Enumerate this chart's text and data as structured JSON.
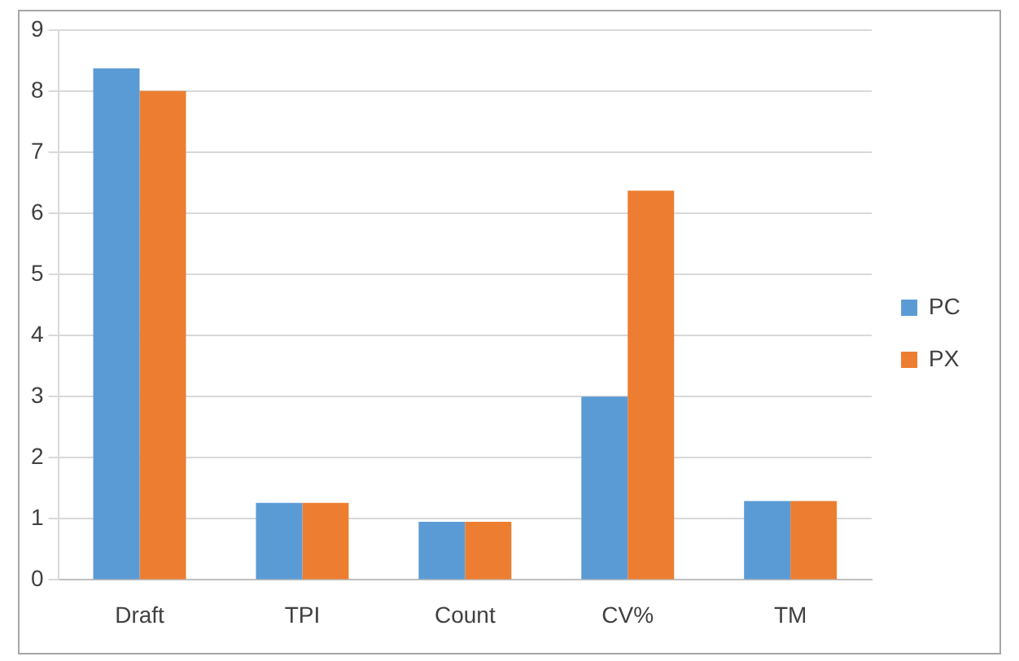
{
  "chart_data": {
    "type": "bar",
    "categories": [
      "Draft",
      "TPI",
      "Count",
      "CV%",
      "TM"
    ],
    "series": [
      {
        "name": "PC",
        "color": "#5b9bd5",
        "values": [
          8.37,
          1.26,
          0.95,
          3.0,
          1.29
        ]
      },
      {
        "name": "PX",
        "color": "#ed7d31",
        "values": [
          8.0,
          1.26,
          0.95,
          6.37,
          1.29
        ]
      }
    ],
    "ylim": [
      0,
      9
    ],
    "yticks": [
      0,
      1,
      2,
      3,
      4,
      5,
      6,
      7,
      8,
      9
    ],
    "grid": "y",
    "legend": "right"
  }
}
